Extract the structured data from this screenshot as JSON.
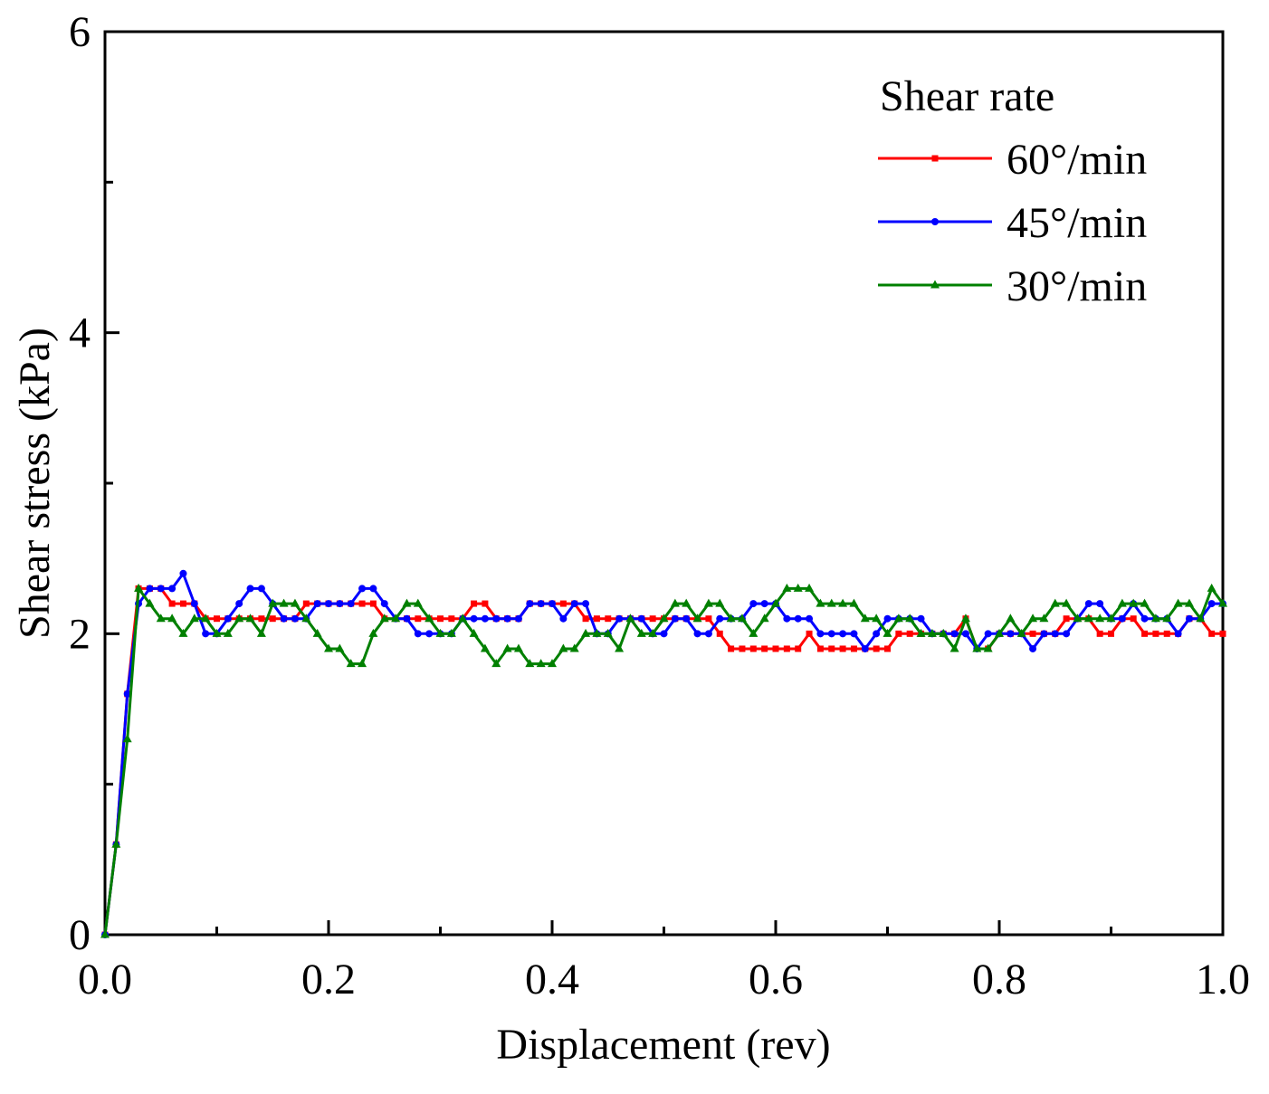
{
  "chart_data": {
    "type": "line",
    "title": "",
    "xlabel": "Displacement (rev)",
    "ylabel": "Shear stress (kPa)",
    "xlim": [
      0.0,
      1.0
    ],
    "ylim": [
      0,
      6
    ],
    "x_ticks": [
      "0.0",
      "0.2",
      "0.4",
      "0.6",
      "0.8",
      "1.0"
    ],
    "y_ticks": [
      "0",
      "2",
      "4",
      "6"
    ],
    "grid": false,
    "legend": {
      "title": "Shear rate",
      "position": "top-right"
    },
    "x": [
      0.0,
      0.01,
      0.02,
      0.03,
      0.04,
      0.05,
      0.06,
      0.07,
      0.08,
      0.09,
      0.1,
      0.11,
      0.12,
      0.13,
      0.14,
      0.15,
      0.16,
      0.17,
      0.18,
      0.19,
      0.2,
      0.21,
      0.22,
      0.23,
      0.24,
      0.25,
      0.26,
      0.27,
      0.28,
      0.29,
      0.3,
      0.31,
      0.32,
      0.33,
      0.34,
      0.35,
      0.36,
      0.37,
      0.38,
      0.39,
      0.4,
      0.41,
      0.42,
      0.43,
      0.44,
      0.45,
      0.46,
      0.47,
      0.48,
      0.49,
      0.5,
      0.51,
      0.52,
      0.53,
      0.54,
      0.55,
      0.56,
      0.57,
      0.58,
      0.59,
      0.6,
      0.61,
      0.62,
      0.63,
      0.64,
      0.65,
      0.66,
      0.67,
      0.68,
      0.69,
      0.7,
      0.71,
      0.72,
      0.73,
      0.74,
      0.75,
      0.76,
      0.77,
      0.78,
      0.79,
      0.8,
      0.81,
      0.82,
      0.83,
      0.84,
      0.85,
      0.86,
      0.87,
      0.88,
      0.89,
      0.9,
      0.91,
      0.92,
      0.93,
      0.94,
      0.95,
      0.96,
      0.97,
      0.98,
      0.99,
      1.0
    ],
    "series": [
      {
        "name": "60°/min",
        "color": "#ff0000",
        "marker": "square",
        "values": [
          0.0,
          0.6,
          1.6,
          2.3,
          2.3,
          2.3,
          2.2,
          2.2,
          2.2,
          2.1,
          2.1,
          2.1,
          2.1,
          2.1,
          2.1,
          2.1,
          2.1,
          2.1,
          2.2,
          2.2,
          2.2,
          2.2,
          2.2,
          2.2,
          2.2,
          2.1,
          2.1,
          2.1,
          2.1,
          2.1,
          2.1,
          2.1,
          2.1,
          2.2,
          2.2,
          2.1,
          2.1,
          2.1,
          2.2,
          2.2,
          2.2,
          2.2,
          2.2,
          2.1,
          2.1,
          2.1,
          2.1,
          2.1,
          2.1,
          2.1,
          2.1,
          2.1,
          2.1,
          2.1,
          2.1,
          2.0,
          1.9,
          1.9,
          1.9,
          1.9,
          1.9,
          1.9,
          1.9,
          2.0,
          1.9,
          1.9,
          1.9,
          1.9,
          1.9,
          1.9,
          1.9,
          2.0,
          2.0,
          2.0,
          2.0,
          2.0,
          2.0,
          2.1,
          1.9,
          1.9,
          2.0,
          2.0,
          2.0,
          2.0,
          2.0,
          2.0,
          2.1,
          2.1,
          2.1,
          2.0,
          2.0,
          2.1,
          2.1,
          2.0,
          2.0,
          2.0,
          2.0,
          2.1,
          2.1,
          2.0,
          2.0
        ]
      },
      {
        "name": "45°/min",
        "color": "#0000ff",
        "marker": "circle",
        "values": [
          0.0,
          0.6,
          1.6,
          2.2,
          2.3,
          2.3,
          2.3,
          2.4,
          2.2,
          2.0,
          2.0,
          2.1,
          2.2,
          2.3,
          2.3,
          2.2,
          2.1,
          2.1,
          2.1,
          2.2,
          2.2,
          2.2,
          2.2,
          2.3,
          2.3,
          2.2,
          2.1,
          2.1,
          2.0,
          2.0,
          2.0,
          2.0,
          2.1,
          2.1,
          2.1,
          2.1,
          2.1,
          2.1,
          2.2,
          2.2,
          2.2,
          2.1,
          2.2,
          2.2,
          2.0,
          2.0,
          2.1,
          2.1,
          2.1,
          2.0,
          2.0,
          2.1,
          2.1,
          2.0,
          2.0,
          2.1,
          2.1,
          2.1,
          2.2,
          2.2,
          2.2,
          2.1,
          2.1,
          2.1,
          2.0,
          2.0,
          2.0,
          2.0,
          1.9,
          2.0,
          2.1,
          2.1,
          2.1,
          2.1,
          2.0,
          2.0,
          2.0,
          2.0,
          1.9,
          2.0,
          2.0,
          2.0,
          2.0,
          1.9,
          2.0,
          2.0,
          2.0,
          2.1,
          2.2,
          2.2,
          2.1,
          2.1,
          2.2,
          2.1,
          2.1,
          2.1,
          2.0,
          2.1,
          2.1,
          2.2,
          2.2
        ]
      },
      {
        "name": "30°/min",
        "color": "#008000",
        "marker": "triangle",
        "values": [
          0.0,
          0.6,
          1.3,
          2.3,
          2.2,
          2.1,
          2.1,
          2.0,
          2.1,
          2.1,
          2.0,
          2.0,
          2.1,
          2.1,
          2.0,
          2.2,
          2.2,
          2.2,
          2.1,
          2.0,
          1.9,
          1.9,
          1.8,
          1.8,
          2.0,
          2.1,
          2.1,
          2.2,
          2.2,
          2.1,
          2.0,
          2.0,
          2.1,
          2.0,
          1.9,
          1.8,
          1.9,
          1.9,
          1.8,
          1.8,
          1.8,
          1.9,
          1.9,
          2.0,
          2.0,
          2.0,
          1.9,
          2.1,
          2.0,
          2.0,
          2.1,
          2.2,
          2.2,
          2.1,
          2.2,
          2.2,
          2.1,
          2.1,
          2.0,
          2.1,
          2.2,
          2.3,
          2.3,
          2.3,
          2.2,
          2.2,
          2.2,
          2.2,
          2.1,
          2.1,
          2.0,
          2.1,
          2.1,
          2.0,
          2.0,
          2.0,
          1.9,
          2.1,
          1.9,
          1.9,
          2.0,
          2.1,
          2.0,
          2.1,
          2.1,
          2.2,
          2.2,
          2.1,
          2.1,
          2.1,
          2.1,
          2.2,
          2.2,
          2.2,
          2.1,
          2.1,
          2.2,
          2.2,
          2.1,
          2.3,
          2.2
        ]
      }
    ]
  }
}
